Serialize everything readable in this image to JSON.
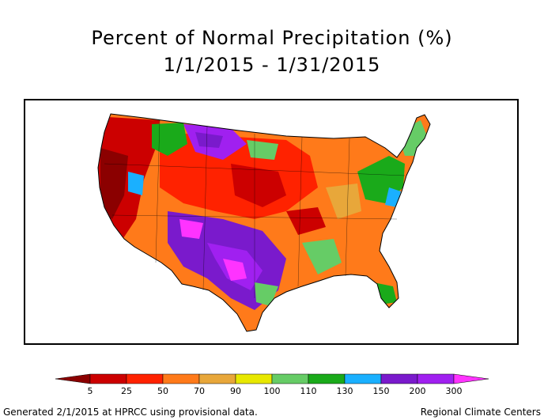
{
  "title": "Percent of Normal Precipitation (%)",
  "date_range": "1/1/2015 - 1/31/2015",
  "legend": {
    "labels": [
      "5",
      "25",
      "50",
      "70",
      "90",
      "100",
      "110",
      "130",
      "150",
      "200",
      "300"
    ],
    "colors": [
      "#8b0000",
      "#cc0000",
      "#ff2200",
      "#ff7a1a",
      "#e8a73a",
      "#e8e800",
      "#66cc66",
      "#1aaa1a",
      "#1ab0ff",
      "#7a1acc",
      "#a020f0",
      "#ff33ff"
    ]
  },
  "footer": {
    "left": "Generated 2/1/2015 at HPRCC using provisional data.",
    "right": "Regional Climate Centers"
  }
}
